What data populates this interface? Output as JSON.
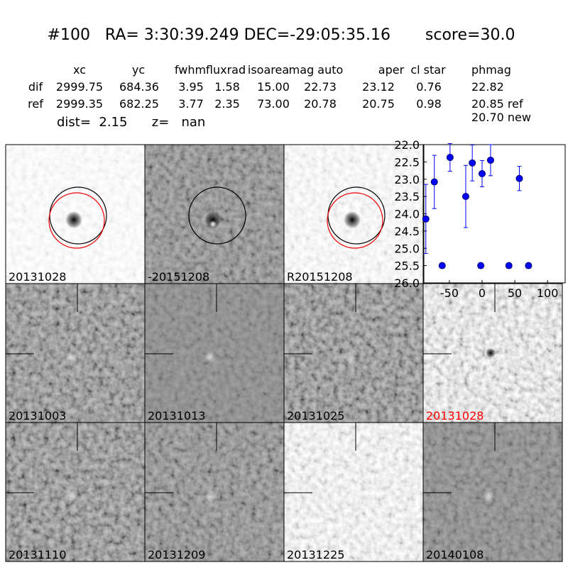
{
  "header": {
    "title": "#100   RA= 3:30:39.249 DEC=-29:05:35.16       score=30.0"
  },
  "table": {
    "columns": [
      "xc",
      "yc",
      "fwhm",
      "fluxrad",
      "isoarea",
      "mag auto",
      "aper",
      "cl star",
      "phmag"
    ],
    "rows": [
      [
        "dif",
        "2999.75",
        "684.36",
        "3.95",
        "1.58",
        "15.00",
        "22.73",
        "23.12",
        "0.76",
        "22.82"
      ],
      [
        "ref",
        "2999.35",
        "682.25",
        "3.77",
        "2.35",
        "73.00",
        "20.78",
        "20.75",
        "0.98",
        "20.85 ref"
      ]
    ],
    "extra": "20.70 new"
  },
  "dist": "dist=  2.15      z=   nan",
  "panels": {
    "top": [
      "20131028",
      "-20151208",
      "R20151208"
    ],
    "middle": [
      "20131003",
      "20131013",
      "20131025",
      "20131028"
    ],
    "bottom": [
      "20131110",
      "20131209",
      "20131225",
      "20140108"
    ]
  },
  "chart_data": {
    "type": "scatter",
    "invert_y": true,
    "xlim": [
      -89,
      127
    ],
    "ylim": [
      22,
      26
    ],
    "xticks": [
      -50,
      0,
      50,
      100
    ],
    "yticks": [
      {
        "value": 22,
        "label": "22.0"
      },
      {
        "value": 22.5,
        "label": "22.5"
      },
      {
        "value": 23,
        "label": "23.0"
      },
      {
        "value": 23.5,
        "label": "23.5"
      },
      {
        "value": 24,
        "label": "24.0"
      },
      {
        "value": 24.5,
        "label": "24.5"
      },
      {
        "value": 25,
        "label": "25.0"
      },
      {
        "value": 25.5,
        "label": "25.5"
      },
      {
        "value": 26,
        "label": "26.0"
      }
    ],
    "series": [
      {
        "color": "#0000ff",
        "marker": "circle",
        "x": [
          -86,
          -73,
          -49,
          -25,
          -15,
          0,
          13,
          57
        ],
        "values": [
          24.15,
          23.08,
          22.37,
          23.5,
          22.53,
          22.84,
          22.45,
          22.98
        ],
        "errors": [
          1.0,
          0.77,
          0.4,
          0.9,
          0.52,
          0.38,
          0.45,
          0.35
        ]
      },
      {
        "color": "#0000ff",
        "marker": "triangle",
        "x": [
          -61,
          -2,
          41,
          71
        ],
        "values": [
          25.5,
          25.5,
          25.5,
          25.5
        ]
      }
    ]
  }
}
